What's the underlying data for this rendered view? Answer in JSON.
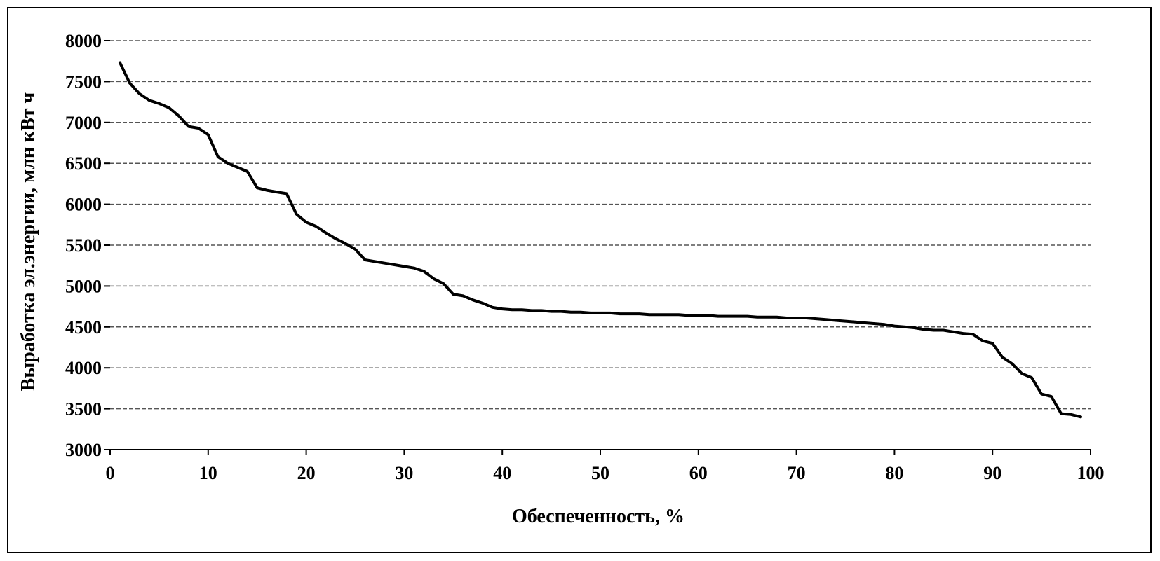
{
  "chart_data": {
    "type": "line",
    "title": "",
    "xlabel": "Обеспеченность, %",
    "ylabel": "Выработка эл.энергии, млн кВт ч",
    "xlim": [
      0,
      100
    ],
    "ylim": [
      3000,
      8000
    ],
    "x_ticks": [
      "0",
      "10",
      "20",
      "30",
      "40",
      "50",
      "60",
      "70",
      "80",
      "90",
      "100"
    ],
    "y_ticks": [
      "3000",
      "3500",
      "4000",
      "4500",
      "5000",
      "5500",
      "6000",
      "6500",
      "7000",
      "7500",
      "8000"
    ],
    "grid": true,
    "legend": "none",
    "series": [
      {
        "color": "#000000",
        "x": [
          1,
          2,
          3,
          4,
          5,
          6,
          7,
          8,
          9,
          10,
          11,
          12,
          13,
          14,
          15,
          16,
          17,
          18,
          19,
          20,
          21,
          22,
          23,
          24,
          25,
          26,
          27,
          28,
          29,
          30,
          31,
          32,
          33,
          34,
          35,
          36,
          37,
          38,
          39,
          40,
          41,
          42,
          43,
          44,
          45,
          46,
          47,
          48,
          49,
          50,
          51,
          52,
          53,
          54,
          55,
          56,
          57,
          58,
          59,
          60,
          61,
          62,
          63,
          64,
          65,
          66,
          67,
          68,
          69,
          70,
          71,
          72,
          73,
          74,
          75,
          76,
          77,
          78,
          79,
          80,
          81,
          82,
          83,
          84,
          85,
          86,
          87,
          88,
          89,
          90,
          91,
          92,
          93,
          94,
          95,
          96,
          97,
          98,
          99
        ],
        "values": [
          7730,
          7480,
          7350,
          7270,
          7230,
          7180,
          7080,
          6950,
          6930,
          6850,
          6580,
          6500,
          6450,
          6400,
          6200,
          6170,
          6150,
          6130,
          5880,
          5780,
          5730,
          5650,
          5580,
          5520,
          5450,
          5320,
          5300,
          5280,
          5260,
          5240,
          5220,
          5180,
          5090,
          5030,
          4900,
          4880,
          4830,
          4790,
          4740,
          4720,
          4710,
          4710,
          4700,
          4700,
          4690,
          4690,
          4680,
          4680,
          4670,
          4670,
          4670,
          4660,
          4660,
          4660,
          4650,
          4650,
          4650,
          4650,
          4640,
          4640,
          4640,
          4630,
          4630,
          4630,
          4630,
          4620,
          4620,
          4620,
          4610,
          4610,
          4610,
          4600,
          4590,
          4580,
          4570,
          4560,
          4550,
          4540,
          4530,
          4510,
          4500,
          4490,
          4470,
          4460,
          4460,
          4440,
          4420,
          4410,
          4330,
          4300,
          4130,
          4050,
          3930,
          3880,
          3680,
          3650,
          3440,
          3430,
          3400
        ]
      }
    ]
  }
}
